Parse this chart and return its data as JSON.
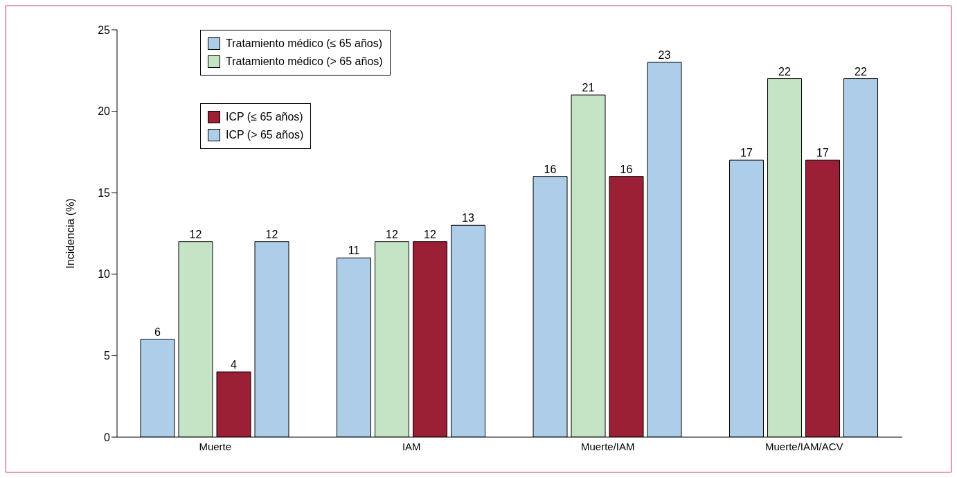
{
  "chart_data": {
    "type": "bar",
    "ylabel": "Incidencia (%)",
    "categories": [
      "Muerte",
      "IAM",
      "Muerte/IAM",
      "Muerte/IAM/ACV"
    ],
    "series": [
      {
        "name": "Tratamiento médico (≤ 65 años)",
        "color": "#aecde9",
        "values": [
          6,
          11,
          16,
          17
        ]
      },
      {
        "name": "Tratamiento médico (> 65 años)",
        "color": "#c5e3c5",
        "values": [
          12,
          12,
          21,
          22
        ]
      },
      {
        "name": "ICP (≤ 65 años)",
        "color": "#9b1f35",
        "values": [
          4,
          12,
          16,
          17
        ]
      },
      {
        "name": "ICP (> 65 años)",
        "color": "#aecde9",
        "values": [
          12,
          13,
          23,
          22
        ]
      }
    ],
    "ylim": [
      0,
      25
    ],
    "yticks": [
      0,
      5,
      10,
      15,
      20,
      25
    ],
    "grid": false,
    "legend": "top left",
    "data_labels": true
  }
}
